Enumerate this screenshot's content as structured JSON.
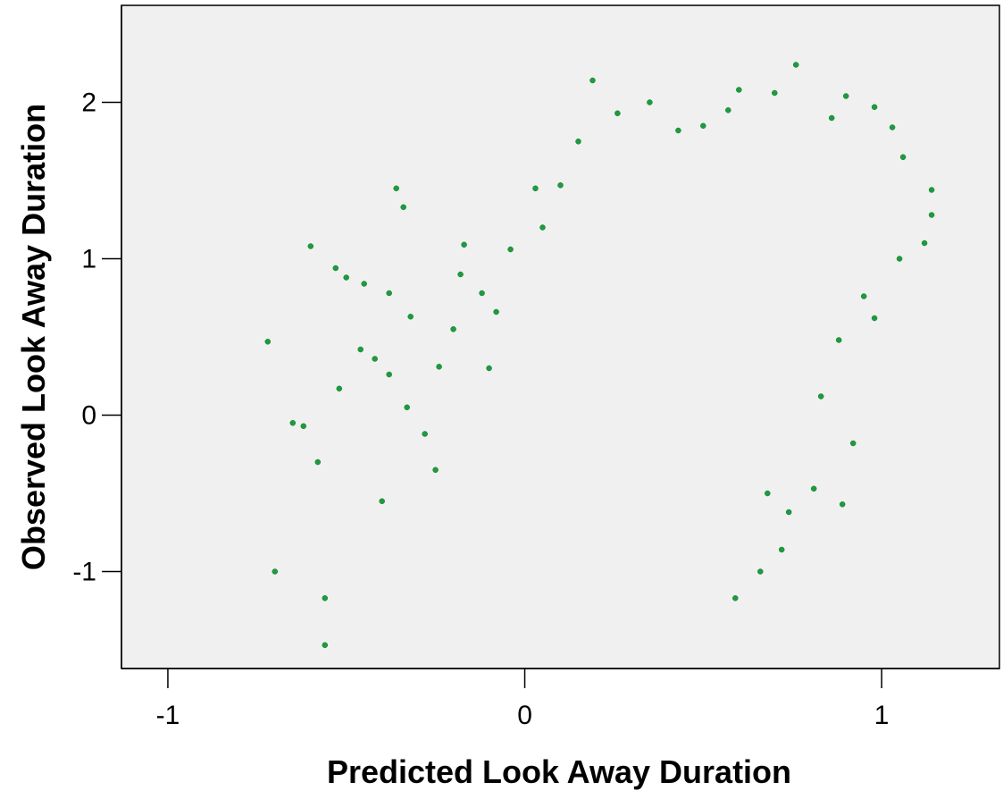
{
  "chart_data": {
    "type": "scatter",
    "title": "",
    "xlabel": "Predicted Look Away Duration",
    "ylabel": "Observed Look Away Duration",
    "xlim": [
      -1.13,
      1.33
    ],
    "ylim": [
      -1.62,
      2.62
    ],
    "xticks": [
      -1,
      0,
      1
    ],
    "yticks": [
      -1,
      0,
      1,
      2
    ],
    "xtick_labels": [
      "-1",
      "0",
      "1"
    ],
    "ytick_labels": [
      "-1",
      "0",
      "1",
      "2"
    ],
    "grid": false,
    "legend": "none",
    "marker_color": "#1e9b3e",
    "marker_edge_color": "#0f7a2c",
    "background_color": "#f0f0f0",
    "series": [
      {
        "points": [
          [
            -0.72,
            0.47
          ],
          [
            -0.65,
            -0.05
          ],
          [
            -0.6,
            1.08
          ],
          [
            -0.53,
            0.94
          ],
          [
            -0.5,
            0.88
          ],
          [
            -0.45,
            0.84
          ],
          [
            -0.38,
            0.78
          ],
          [
            -0.32,
            0.63
          ],
          [
            -0.36,
            1.45
          ],
          [
            -0.34,
            1.33
          ],
          [
            -0.56,
            -1.47
          ],
          [
            -0.62,
            -0.07
          ],
          [
            -0.58,
            -0.3
          ],
          [
            -0.52,
            0.17
          ],
          [
            -0.46,
            0.42
          ],
          [
            -0.42,
            0.36
          ],
          [
            -0.38,
            0.26
          ],
          [
            -0.33,
            0.05
          ],
          [
            -0.28,
            -0.12
          ],
          [
            -0.24,
            0.31
          ],
          [
            -0.2,
            0.55
          ],
          [
            -0.18,
            0.9
          ],
          [
            -0.17,
            1.09
          ],
          [
            -0.12,
            0.78
          ],
          [
            -0.08,
            0.66
          ],
          [
            -0.04,
            1.06
          ],
          [
            0.03,
            1.45
          ],
          [
            0.1,
            1.47
          ],
          [
            0.19,
            2.14
          ],
          [
            0.26,
            1.93
          ],
          [
            0.35,
            2.0
          ],
          [
            0.43,
            1.82
          ],
          [
            0.5,
            1.85
          ],
          [
            0.57,
            1.95
          ],
          [
            0.6,
            2.08
          ],
          [
            0.7,
            2.06
          ],
          [
            0.76,
            2.24
          ],
          [
            0.86,
            1.9
          ],
          [
            0.9,
            2.04
          ],
          [
            0.98,
            1.97
          ],
          [
            1.03,
            1.84
          ],
          [
            1.06,
            1.65
          ],
          [
            1.14,
            1.44
          ],
          [
            1.14,
            1.28
          ],
          [
            1.12,
            1.1
          ],
          [
            1.05,
            1.0
          ],
          [
            0.98,
            0.62
          ],
          [
            0.92,
            -0.18
          ],
          [
            0.89,
            -0.57
          ],
          [
            0.81,
            -0.47
          ],
          [
            0.74,
            -0.62
          ],
          [
            0.68,
            -0.5
          ],
          [
            -0.7,
            -1.0
          ],
          [
            -0.56,
            -1.17
          ],
          [
            0.59,
            -1.17
          ],
          [
            0.66,
            -1.0
          ],
          [
            0.72,
            -0.86
          ],
          [
            0.15,
            1.75
          ],
          [
            0.05,
            1.2
          ],
          [
            -0.1,
            0.3
          ],
          [
            -0.25,
            -0.35
          ],
          [
            -0.4,
            -0.55
          ],
          [
            0.83,
            0.12
          ],
          [
            0.88,
            0.48
          ],
          [
            0.95,
            0.76
          ]
        ]
      }
    ]
  }
}
